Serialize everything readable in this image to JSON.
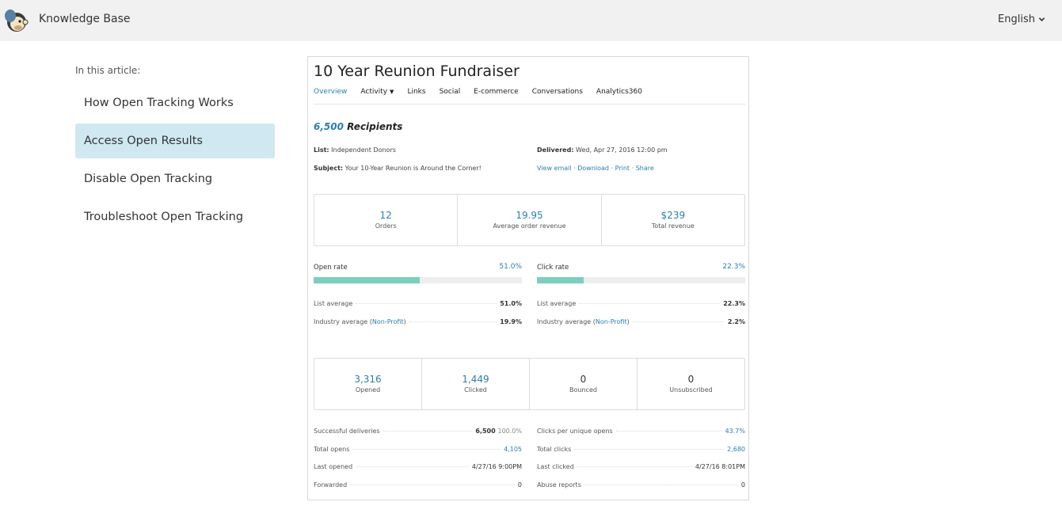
{
  "header": {
    "brand": "Knowledge Base",
    "language": "English"
  },
  "toc": {
    "heading": "In this article:",
    "items": [
      {
        "label": "How Open Tracking Works"
      },
      {
        "label": "Access Open Results"
      },
      {
        "label": "Disable Open Tracking"
      },
      {
        "label": "Troubleshoot Open Tracking"
      }
    ]
  },
  "report": {
    "title": "10 Year Reunion Fundraiser",
    "tabs": [
      "Overview",
      "Activity",
      "Links",
      "Social",
      "E-commerce",
      "Conversations",
      "Analytics360"
    ],
    "recipients_count": "6,500",
    "recipients_label": "Recipients",
    "list_label": "List:",
    "list_value": "Independent Donors",
    "subject_label": "Subject:",
    "subject_value": "Your 10-Year Reunion is Around the Corner!",
    "delivered_label": "Delivered:",
    "delivered_value": "Wed, Apr 27, 2016 12:00 pm",
    "links": {
      "view_email": "View email",
      "download": "Download",
      "print": "Print",
      "share": "Share",
      "sep": " · "
    },
    "ecommerce": [
      {
        "value": "12",
        "label": "Orders"
      },
      {
        "value": "19.95",
        "label": "Average order revenue"
      },
      {
        "value": "$239",
        "label": "Total revenue"
      }
    ],
    "open_rate": {
      "label": "Open rate",
      "value": "51.0%",
      "percent": 51.0,
      "list_avg_label": "List average",
      "list_avg": "51.0%",
      "industry_label_pre": "Industry average (",
      "industry_link": "Non-Profit",
      "industry_label_post": ")",
      "industry_avg": "19.9%"
    },
    "click_rate": {
      "label": "Click rate",
      "value": "22.3%",
      "percent": 22.3,
      "list_avg_label": "List average",
      "list_avg": "22.3%",
      "industry_label_pre": "Industry average (",
      "industry_link": "Non-Profit",
      "industry_label_post": ")",
      "industry_avg": "2.2%"
    },
    "totals": [
      {
        "value": "3,316",
        "label": "Opened"
      },
      {
        "value": "1,449",
        "label": "Clicked"
      },
      {
        "value": "0",
        "label": "Bounced"
      },
      {
        "value": "0",
        "label": "Unsubscribed"
      }
    ],
    "stats_left": [
      {
        "label": "Successful deliveries",
        "value": "6,500",
        "extra": "100.0%"
      },
      {
        "label": "Total opens",
        "value": "4,105"
      },
      {
        "label": "Last opened",
        "value": "4/27/16 9:00PM"
      },
      {
        "label": "Forwarded",
        "value": "0"
      }
    ],
    "stats_right": [
      {
        "label": "Clicks per unique opens",
        "value": "43.7%"
      },
      {
        "label": "Total clicks",
        "value": "2,680"
      },
      {
        "label": "Last clicked",
        "value": "4/27/16 8:01PM"
      },
      {
        "label": "Abuse reports",
        "value": "0"
      }
    ]
  },
  "colors": {
    "accent": "#2a7fae",
    "bar_fill": "#7ccfbd",
    "toc_active": "#cfe8f1"
  }
}
